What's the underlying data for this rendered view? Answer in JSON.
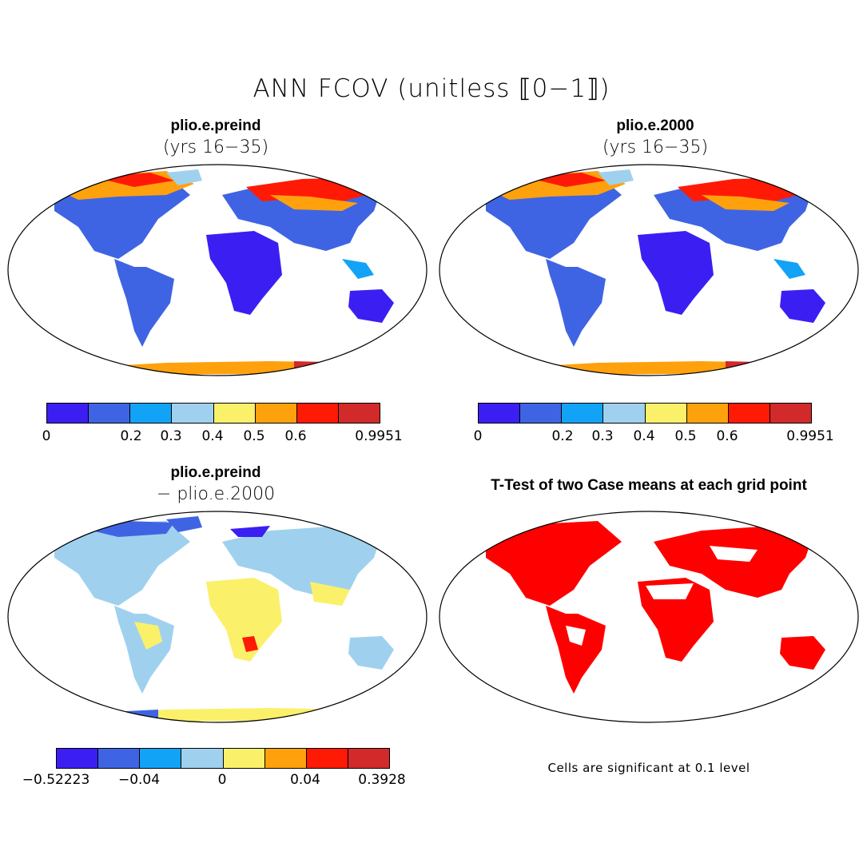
{
  "title": "ANN FCOV (unitless ⟦0−1⟧)",
  "panels": {
    "top_left": {
      "title": "plio.e.preind",
      "subtitle": "(yrs 16−35)"
    },
    "top_right": {
      "title": "plio.e.2000",
      "subtitle": "(yrs 16−35)"
    },
    "bottom_left": {
      "title": "plio.e.preind",
      "subtitle": "− plio.e.2000"
    },
    "bottom_right": {
      "title": "T-Test of two Case means at each grid point"
    }
  },
  "colorbars": {
    "top": {
      "colors": [
        "#3b1ff2",
        "#3f64e3",
        "#12a3f7",
        "#9fd1ef",
        "#fbf06a",
        "#ffa10d",
        "#ff1a05",
        "#d22a2a"
      ],
      "ticks": [
        "0",
        "0.2",
        "0.3",
        "0.4",
        "0.5",
        "0.6",
        "0.9951"
      ]
    },
    "bottom": {
      "colors": [
        "#3b1ff2",
        "#3f64e3",
        "#12a3f7",
        "#9fd1ef",
        "#fbf06a",
        "#ffa10d",
        "#ff1a05",
        "#d22a2a"
      ],
      "ticks": [
        "−0.52223",
        "−0.04",
        "0",
        "0.04",
        "0.3928"
      ]
    }
  },
  "note": "Cells are significant at 0.1 level"
}
